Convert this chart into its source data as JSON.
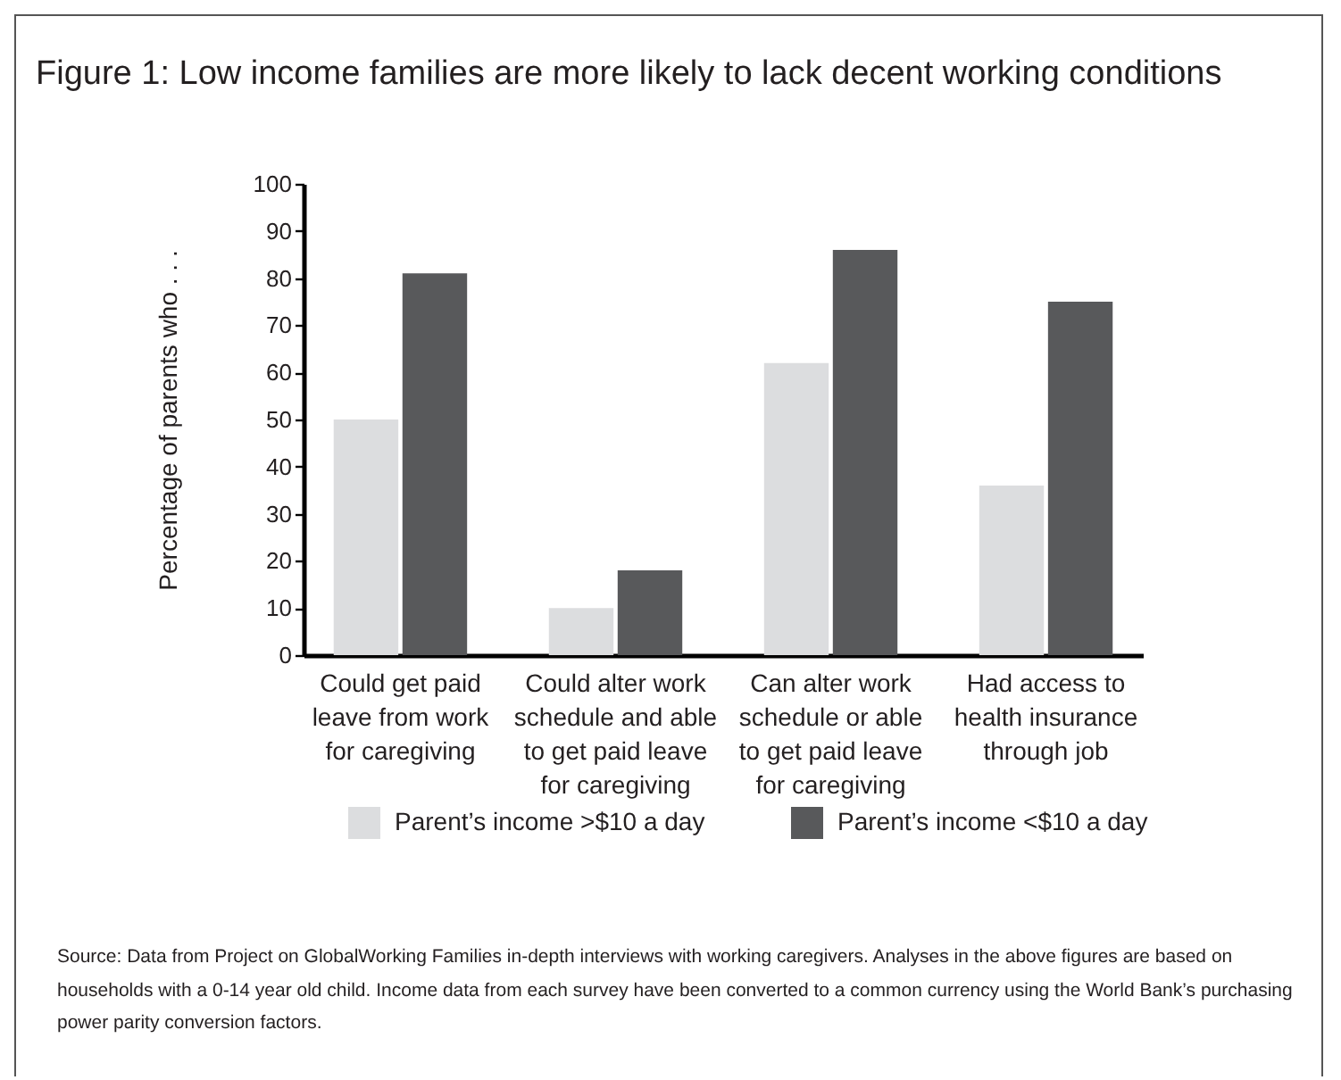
{
  "chart_data": {
    "type": "bar",
    "title": "Figure 1: Low income families are more likely to lack decent working conditions",
    "ylabel": "Percentage of parents who . . .",
    "categories": [
      "Could get paid leave from work for caregiving",
      "Could alter work schedule and able to get paid leave for caregiving",
      "Can alter work schedule or able to get paid leave for caregiving",
      "Had access to health insurance through job"
    ],
    "series": [
      {
        "name": "Parent’s income >$10 a day",
        "color": "#dcdddf",
        "values": [
          50,
          10,
          62,
          36
        ]
      },
      {
        "name": "Parent’s income <$10 a day",
        "color": "#58595b",
        "values": [
          81,
          18,
          86,
          75
        ]
      }
    ],
    "ylim": [
      0,
      100
    ],
    "yticks": [
      0,
      10,
      20,
      30,
      40,
      50,
      60,
      70,
      80,
      90,
      100
    ],
    "grid": false,
    "legend": "bottom",
    "annotations": [
      "Source: Data from Project on GlobalWorking Families in-depth interviews with working caregivers. Analyses in the above figures are based on households with a 0-14 year old child. Income data from each survey have been converted to a common currency using the World Bank’s purchasing power parity conversion factors."
    ]
  }
}
